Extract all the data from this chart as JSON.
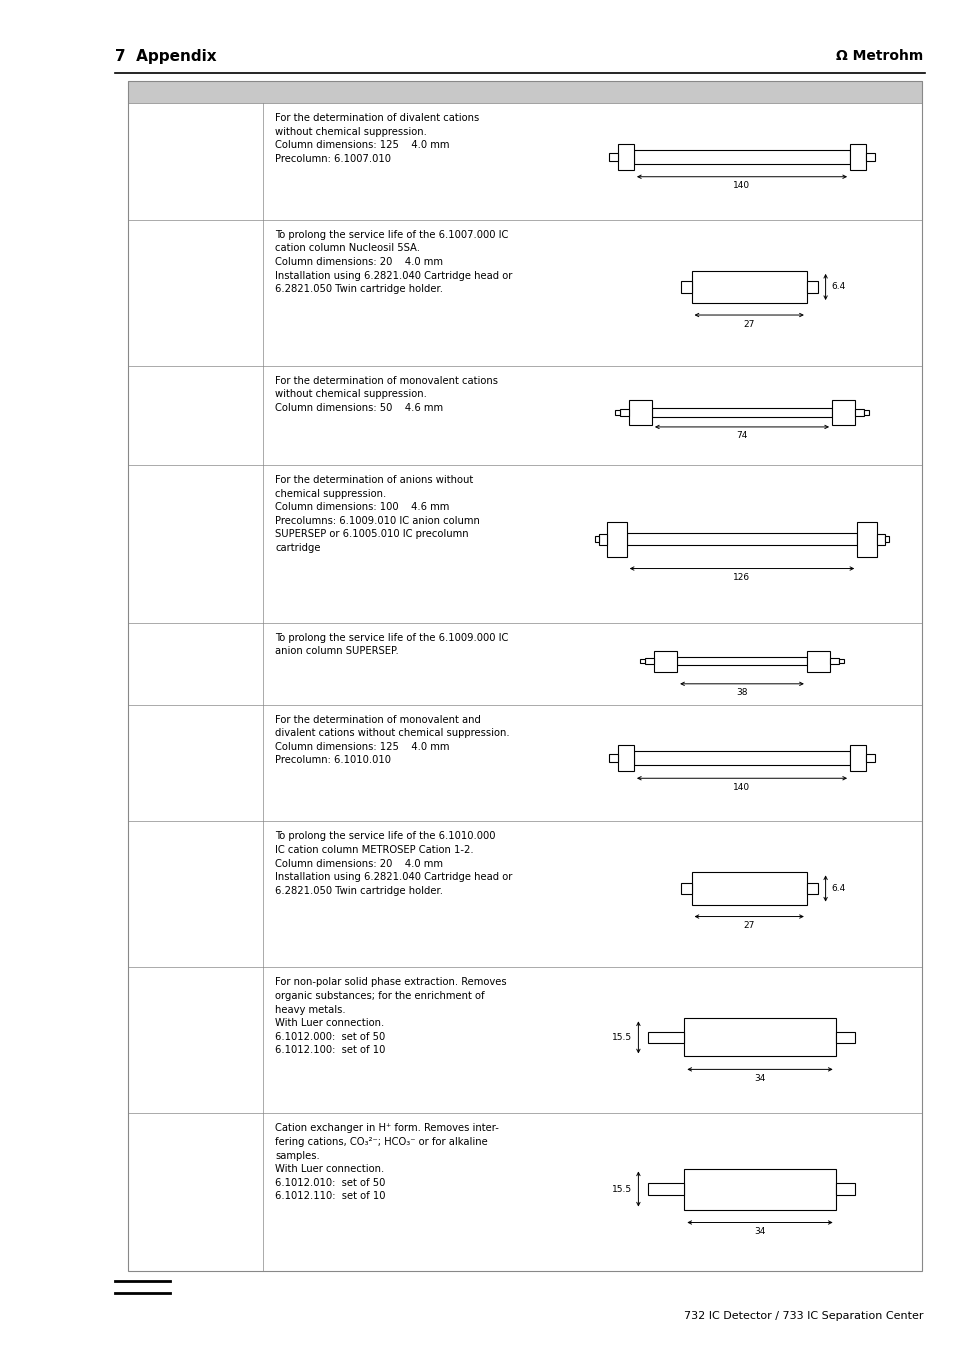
{
  "title_left": "7  Appendix",
  "title_right": "Metrohm",
  "footer_text": "732 IC Detector / 733 IC Separation Center",
  "bg_color": "#ffffff",
  "rows": [
    {
      "text": "For the determination of divalent cations\nwithout chemical suppression.\nColumn dimensions: 125    4.0 mm\nPrecolumn: 6.1007.010",
      "diagram_type": "long_column",
      "dim_label": "140",
      "side_label": ""
    },
    {
      "text": "To prolong the service life of the 6.1007.000 IC\ncation column Nucleosil 5SA.\nColumn dimensions: 20    4.0 mm\nInstallation using 6.2821.040 Cartridge head or\n6.2821.050 Twin cartridge holder.",
      "diagram_type": "short_cartridge",
      "dim_label": "27",
      "side_label": "6.4"
    },
    {
      "text": "For the determination of monovalent cations\nwithout chemical suppression.\nColumn dimensions: 50    4.6 mm",
      "diagram_type": "medium_column_flanged",
      "dim_label": "74",
      "side_label": ""
    },
    {
      "text": "For the determination of anions without\nchemical suppression.\nColumn dimensions: 100    4.6 mm\nPrecolumns: 6.1009.010 IC anion column\nSUPERSEP or 6.1005.010 IC precolumn\ncartridge",
      "diagram_type": "long_column_flanged",
      "dim_label": "126",
      "side_label": ""
    },
    {
      "text": "To prolong the service life of the 6.1009.000 IC\nanion column SUPERSEP.",
      "diagram_type": "short_flanged",
      "dim_label": "38",
      "side_label": ""
    },
    {
      "text": "For the determination of monovalent and\ndivalent cations without chemical suppression.\nColumn dimensions: 125    4.0 mm\nPrecolumn: 6.1010.010",
      "diagram_type": "long_column",
      "dim_label": "140",
      "side_label": ""
    },
    {
      "text": "To prolong the service life of the 6.1010.000\nIC cation column METROSEP Cation 1-2.\nColumn dimensions: 20    4.0 mm\nInstallation using 6.2821.040 Cartridge head or\n6.2821.050 Twin cartridge holder.",
      "diagram_type": "short_cartridge",
      "dim_label": "27",
      "side_label": "6.4"
    },
    {
      "text": "For non-polar solid phase extraction. Removes\norganic substances; for the enrichment of\nheavy metals.\nWith Luer connection.\n6.1012.000:  set of 50\n6.1012.100:  set of 10",
      "diagram_type": "luer_cartridge",
      "dim_label": "34",
      "side_label": "15.5"
    },
    {
      "text": "Cation exchanger in H⁺ form. Removes inter-\nfering cations, CO₃²⁻; HCO₃⁻ or for alkaline\nsamples.\nWith Luer connection.\n6.1012.010:  set of 50\n6.1012.110:  set of 10",
      "diagram_type": "luer_cartridge",
      "dim_label": "34",
      "side_label": "15.5"
    }
  ]
}
